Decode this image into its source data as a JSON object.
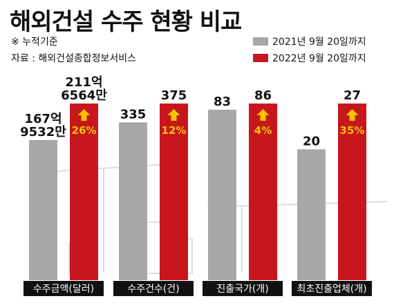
{
  "title": "해외건설 수주 현황 비교",
  "notes": {
    "basis": "※ 누적기준",
    "source": "자료 : 해외건설종합정보서비스"
  },
  "chart_data": {
    "type": "bar",
    "categories": [
      "수주금액(달러)",
      "수주건수(건)",
      "진출국가(개)",
      "최초진출업체(개)"
    ],
    "series": [
      {
        "name": "2021년 9월 20일까지",
        "color": "#a7a7a7",
        "values": [
          167.9532,
          335,
          83,
          20
        ],
        "labels": [
          [
            "167억",
            "9532만"
          ],
          [
            "335"
          ],
          [
            "83"
          ],
          [
            "20"
          ]
        ]
      },
      {
        "name": "2022년 9월 20일까지",
        "color": "#c8161d",
        "values": [
          211.6564,
          375,
          86,
          27
        ],
        "labels": [
          [
            "211억",
            "6564만"
          ],
          [
            "375"
          ],
          [
            "86"
          ],
          [
            "27"
          ]
        ]
      }
    ],
    "growth": [
      "26%",
      "12%",
      "4%",
      "35%"
    ],
    "legend_position": "top-right"
  },
  "colors": {
    "category_bar": "#111111",
    "growth_arrow": "#f5c400",
    "background_structures": "#dcdcdc"
  }
}
